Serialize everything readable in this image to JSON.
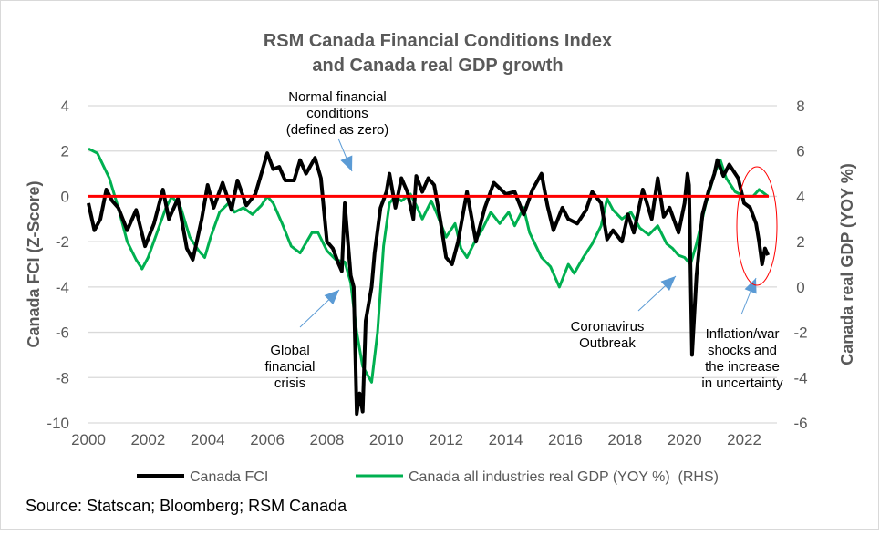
{
  "chart_data": {
    "type": "line",
    "title": [
      "RSM Canada Financial Conditions Index",
      "and Canada real GDP growth"
    ],
    "xlabel": "",
    "ylabel": "Canada FCI (Z-Score)",
    "y2label": "Canada real GDP (YOY %)",
    "xlim": [
      2000,
      2023.1
    ],
    "ylim": [
      -10,
      4
    ],
    "y2lim": [
      -6,
      8
    ],
    "x_ticks": [
      "2000",
      "2002",
      "2004",
      "2006",
      "2008",
      "2010",
      "2012",
      "2014",
      "2016",
      "2018",
      "2020",
      "2022"
    ],
    "y_ticks": [
      "4",
      "2",
      "0",
      "-2",
      "-4",
      "-6",
      "-8",
      "-10"
    ],
    "y2_ticks": [
      "8",
      "6",
      "4",
      "2",
      "0",
      "-2",
      "-4",
      "-6"
    ],
    "grid": "horizontal",
    "legend_position": "bottom",
    "series": [
      {
        "name": "Canada FCI",
        "axis": "left",
        "color": "#000000",
        "x": [
          2000.0,
          2000.2,
          2000.4,
          2000.6,
          2000.8,
          2001.0,
          2001.3,
          2001.6,
          2001.9,
          2002.2,
          2002.5,
          2002.7,
          2003.0,
          2003.3,
          2003.5,
          2003.8,
          2004.0,
          2004.2,
          2004.5,
          2004.8,
          2005.0,
          2005.3,
          2005.6,
          2005.8,
          2006.0,
          2006.2,
          2006.4,
          2006.6,
          2006.9,
          2007.1,
          2007.3,
          2007.6,
          2007.8,
          2008.0,
          2008.2,
          2008.4,
          2008.5,
          2008.6,
          2008.8,
          2008.9,
          2009.0,
          2009.1,
          2009.2,
          2009.3,
          2009.5,
          2009.6,
          2009.8,
          2010.0,
          2010.1,
          2010.3,
          2010.5,
          2010.7,
          2010.9,
          2011.0,
          2011.2,
          2011.4,
          2011.6,
          2011.8,
          2012.0,
          2012.2,
          2012.4,
          2012.7,
          2013.0,
          2013.3,
          2013.6,
          2014.0,
          2014.3,
          2014.6,
          2014.9,
          2015.2,
          2015.4,
          2015.6,
          2015.9,
          2016.1,
          2016.4,
          2016.7,
          2016.9,
          2017.2,
          2017.4,
          2017.6,
          2017.9,
          2018.1,
          2018.3,
          2018.6,
          2018.9,
          2019.1,
          2019.3,
          2019.5,
          2019.8,
          2020.0,
          2020.1,
          2020.15,
          2020.25,
          2020.4,
          2020.6,
          2020.8,
          2021.0,
          2021.1,
          2021.3,
          2021.5,
          2021.8,
          2022.0,
          2022.2,
          2022.4,
          2022.5,
          2022.6,
          2022.7,
          2022.8
        ],
        "y": [
          -0.3,
          -1.5,
          -1.0,
          0.3,
          -0.2,
          -0.5,
          -1.5,
          -0.6,
          -2.2,
          -1.2,
          0.3,
          -1.0,
          -0.1,
          -2.3,
          -2.8,
          -1.0,
          0.5,
          -0.5,
          0.6,
          -0.6,
          0.7,
          -0.4,
          0.1,
          1.0,
          1.9,
          1.2,
          1.3,
          0.7,
          0.7,
          1.6,
          1.0,
          1.7,
          0.8,
          -2.0,
          -2.3,
          -3.0,
          -3.3,
          -0.3,
          -3.5,
          -4.0,
          -9.6,
          -8.7,
          -9.5,
          -5.5,
          -4.0,
          -2.5,
          -0.5,
          0.2,
          1.0,
          -0.5,
          0.8,
          0.2,
          -1.0,
          0.9,
          0.2,
          0.8,
          0.5,
          -1.0,
          -2.7,
          -3.0,
          -2.0,
          0.2,
          -2.0,
          -0.5,
          0.6,
          0.1,
          0.2,
          -0.8,
          0.3,
          1.0,
          -0.4,
          -1.5,
          -0.5,
          -1.0,
          -1.2,
          -0.6,
          0.2,
          -0.3,
          -1.9,
          -1.5,
          -2.0,
          -0.8,
          -1.6,
          0.3,
          -1.0,
          0.8,
          -0.9,
          -0.5,
          -1.6,
          -0.3,
          1.0,
          0.5,
          -7.0,
          -3.5,
          -0.8,
          0.2,
          1.0,
          1.6,
          0.9,
          1.4,
          0.8,
          -0.3,
          -0.5,
          -1.2,
          -2.0,
          -3.0,
          -2.3,
          -2.6
        ]
      },
      {
        "name": "Canada all industries real GDP (YOY %)  (RHS)",
        "axis": "right",
        "color": "#00B050",
        "x": [
          2000.0,
          2000.3,
          2000.7,
          2001.0,
          2001.3,
          2001.6,
          2001.8,
          2002.0,
          2002.3,
          2002.6,
          2002.8,
          2003.1,
          2003.4,
          2003.7,
          2003.9,
          2004.1,
          2004.4,
          2004.7,
          2004.9,
          2005.2,
          2005.5,
          2005.8,
          2006.0,
          2006.2,
          2006.5,
          2006.8,
          2007.1,
          2007.5,
          2007.7,
          2008.0,
          2008.3,
          2008.6,
          2008.8,
          2009.0,
          2009.2,
          2009.5,
          2009.7,
          2009.9,
          2010.1,
          2010.3,
          2010.5,
          2010.8,
          2011.0,
          2011.2,
          2011.5,
          2011.7,
          2012.0,
          2012.3,
          2012.5,
          2012.7,
          2013.0,
          2013.2,
          2013.5,
          2013.8,
          2014.1,
          2014.3,
          2014.6,
          2014.8,
          2015.2,
          2015.5,
          2015.8,
          2016.1,
          2016.3,
          2016.6,
          2016.9,
          2017.2,
          2017.4,
          2017.6,
          2017.9,
          2018.2,
          2018.5,
          2018.8,
          2019.1,
          2019.4,
          2019.6,
          2019.8,
          2020.0,
          2020.2,
          2020.4,
          2020.7,
          2021.0,
          2021.2,
          2021.4,
          2021.7,
          2022.0,
          2022.3,
          2022.5,
          2022.8
        ],
        "y": [
          6.1,
          5.9,
          4.8,
          3.5,
          2.0,
          1.2,
          0.8,
          1.3,
          2.4,
          3.5,
          4.0,
          3.5,
          2.2,
          1.6,
          1.3,
          2.2,
          3.3,
          3.7,
          3.3,
          3.5,
          3.2,
          3.6,
          4.0,
          3.7,
          2.8,
          1.8,
          1.5,
          2.4,
          2.4,
          1.6,
          1.2,
          1.1,
          0.2,
          -2.0,
          -3.5,
          -4.2,
          -2.0,
          1.8,
          3.7,
          4.0,
          3.8,
          4.1,
          3.6,
          3.0,
          3.8,
          3.2,
          2.2,
          2.8,
          1.7,
          1.3,
          2.1,
          2.5,
          3.3,
          2.8,
          3.3,
          2.7,
          3.5,
          2.4,
          1.3,
          0.9,
          0.0,
          1.0,
          0.6,
          1.3,
          1.9,
          2.7,
          3.9,
          3.4,
          3.0,
          3.3,
          2.6,
          2.3,
          2.7,
          1.9,
          1.7,
          1.4,
          1.3,
          1.0,
          1.9,
          3.6,
          5.0,
          5.6,
          4.8,
          4.2,
          4.0,
          4.0,
          4.3,
          4.0
        ]
      }
    ],
    "reference_line": {
      "value": 0,
      "color": "#FF0000"
    },
    "annotations": [
      {
        "key": "normal",
        "lines": [
          "Normal financial",
          "conditions",
          "(defined as zero)"
        ]
      },
      {
        "key": "gfc",
        "lines": [
          "Global",
          "financial",
          "crisis"
        ]
      },
      {
        "key": "covid",
        "lines": [
          "Coronavirus",
          "Outbreak"
        ]
      },
      {
        "key": "inflation",
        "lines": [
          "Inflation/war",
          "shocks and",
          "the increase",
          "in uncertainty"
        ]
      }
    ],
    "arrow_color": "#5B9BD5",
    "highlight_color": "#FF0000"
  },
  "source": "Source: Statscan; Bloomberg; RSM Canada"
}
